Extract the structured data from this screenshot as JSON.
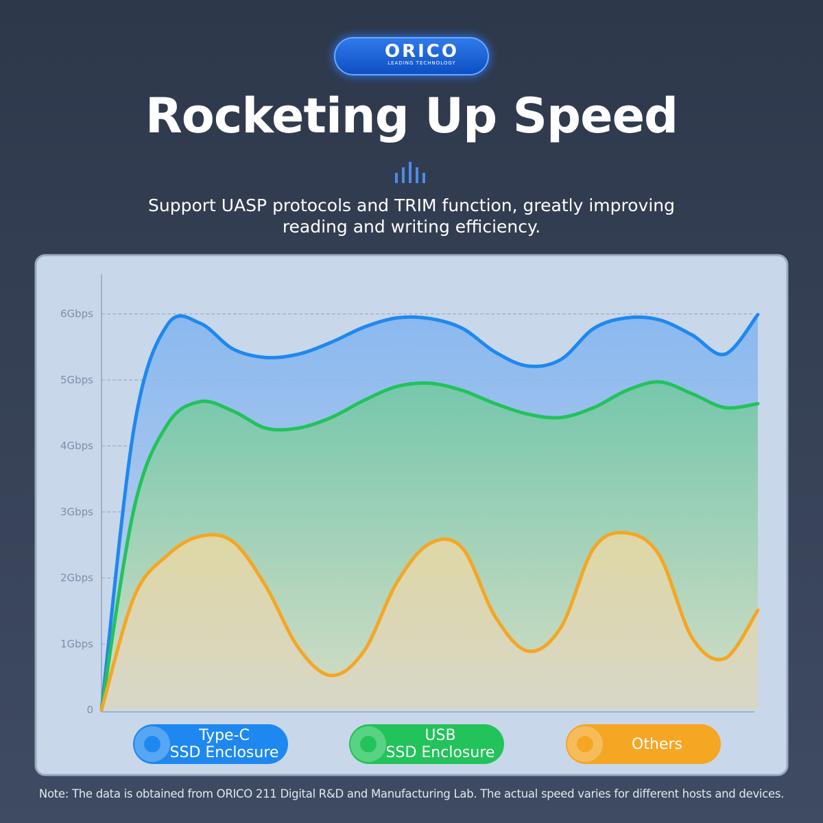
{
  "logo": {
    "name": "ORICO",
    "tagline": "LEADING TECHNOLOGY"
  },
  "chart_data": {
    "type": "line",
    "title": "Rocketing Up Speed",
    "subtitle": "Support UASP protocols and TRIM function, greatly improving reading and writing efficiency.",
    "note": "Note: The data is obtained from ORICO 211 Digital R&D and Manufacturing Lab. The actual speed varies for different hosts and devices.",
    "categories": [
      null,
      null,
      null,
      null,
      null,
      null,
      null,
      null,
      null,
      null,
      null,
      null,
      null,
      null,
      null,
      null,
      null,
      null,
      null,
      null,
      null
    ],
    "series": [
      {
        "name": "Type-C\nSSD Enclosure",
        "color": "#1e88f0",
        "values": [
          0,
          4.3,
          5.83,
          5.86,
          5.47,
          5.34,
          5.39,
          5.57,
          5.8,
          5.94,
          5.93,
          5.78,
          5.42,
          5.21,
          5.31,
          5.78,
          5.94,
          5.91,
          5.68,
          5.39,
          5.99
        ]
      },
      {
        "name": "USB\nSSD Enclosure",
        "color": "#22c35a",
        "values": [
          0,
          3.07,
          4.32,
          4.67,
          4.53,
          4.27,
          4.27,
          4.43,
          4.69,
          4.9,
          4.95,
          4.84,
          4.64,
          4.48,
          4.43,
          4.58,
          4.84,
          4.97,
          4.79,
          4.58,
          4.64
        ]
      },
      {
        "name": "Others",
        "color": "#f5a623",
        "values": [
          0,
          1.72,
          2.34,
          2.63,
          2.55,
          1.88,
          0.94,
          0.52,
          0.89,
          1.93,
          2.52,
          2.45,
          1.41,
          0.89,
          1.25,
          2.45,
          2.68,
          2.34,
          1.09,
          0.78,
          1.51
        ]
      }
    ],
    "ylim": [
      0,
      6.6
    ],
    "yticks": [
      0,
      {
        "value": 1,
        "label": "1Gbps"
      },
      {
        "value": 2,
        "label": "2Gbps"
      },
      {
        "value": 3,
        "label": "3Gbps"
      },
      {
        "value": 4,
        "label": "4Gbps"
      },
      {
        "value": 5,
        "label": "5Gbps"
      },
      {
        "value": 6,
        "label": "6Gbps"
      }
    ],
    "grid": true
  }
}
